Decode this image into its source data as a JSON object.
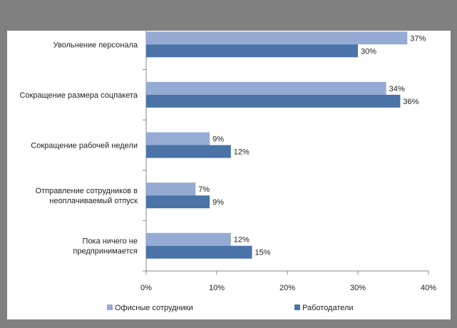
{
  "chart_data": {
    "type": "bar",
    "orientation": "horizontal",
    "title": "",
    "xlabel": "",
    "ylabel": "",
    "categories": [
      [
        "Увольнение персонала"
      ],
      [
        "Сокращение размера соцпакета"
      ],
      [
        "Сокращение рабочей недели"
      ],
      [
        "Отправление сотрудников в",
        "неоплачиваемый отпуск"
      ],
      [
        "Пока ничего не",
        "предпринимается"
      ]
    ],
    "series": [
      {
        "name": "Офисные сотрудники",
        "color": "#95abd4",
        "values": [
          37,
          34,
          9,
          7,
          12
        ],
        "labels": [
          "37%",
          "34%",
          "9%",
          "7%",
          "12%"
        ]
      },
      {
        "name": "Работодатели",
        "color": "#4a74a8",
        "values": [
          30,
          36,
          12,
          9,
          15
        ],
        "labels": [
          "30%",
          "36%",
          "12%",
          "9%",
          "15%"
        ]
      }
    ],
    "xlim": [
      0,
      40
    ],
    "ticks": [
      "0%",
      "10%",
      "20%",
      "30%",
      "40%"
    ],
    "tick_values": [
      0,
      10,
      20,
      30,
      40
    ],
    "legend": "bottom",
    "grid": false
  }
}
